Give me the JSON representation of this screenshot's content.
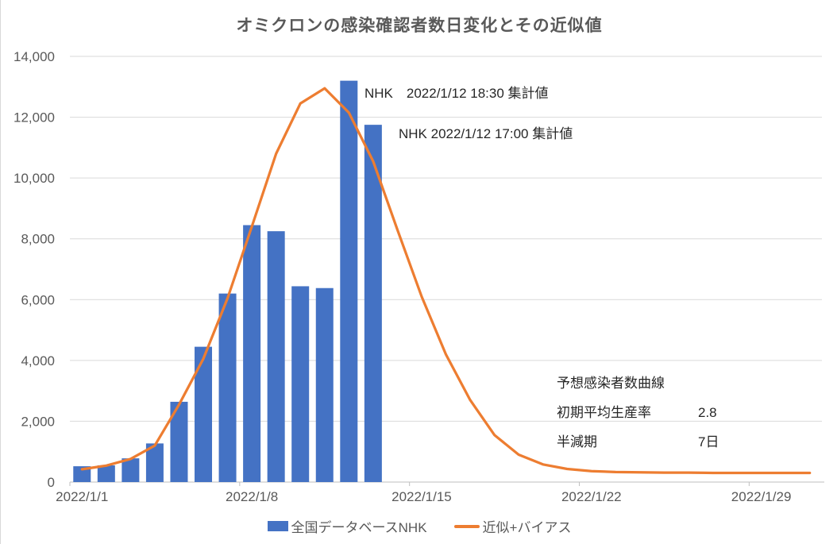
{
  "title": "オミクロンの感染確認者数日変化とその近似値",
  "chart_data": {
    "type": "combo",
    "title": "オミクロンの感染確認者数日変化とその近似値",
    "x_unit": "date (January 2022, daily)",
    "categories": [
      1,
      2,
      3,
      4,
      5,
      6,
      7,
      8,
      9,
      10,
      11,
      12,
      13,
      14,
      15,
      16,
      17,
      18,
      19,
      20,
      21,
      22,
      23,
      24,
      25,
      26,
      27,
      28,
      29,
      30,
      31
    ],
    "x_tick_labels": [
      {
        "day": 1,
        "label": "2022/1/1"
      },
      {
        "day": 8,
        "label": "2022/1/8"
      },
      {
        "day": 15,
        "label": "2022/1/15"
      },
      {
        "day": 22,
        "label": "2022/1/22"
      },
      {
        "day": 29,
        "label": "2022/1/29"
      }
    ],
    "y_ticks": [
      0,
      2000,
      4000,
      6000,
      8000,
      10000,
      12000,
      14000
    ],
    "ylim": [
      0,
      14000
    ],
    "grid": "horizontal",
    "legend_position": "bottom",
    "series": [
      {
        "name": "全国データベースNHK",
        "type": "bar",
        "color": "#4472C4",
        "values": [
          520,
          550,
          780,
          1270,
          2640,
          4450,
          6200,
          8450,
          8250,
          6440,
          6380,
          13200,
          11750,
          null,
          null,
          null,
          null,
          null,
          null,
          null,
          null,
          null,
          null,
          null,
          null,
          null,
          null,
          null,
          null,
          null,
          null
        ]
      },
      {
        "name": "近似+バイアス",
        "type": "line",
        "color": "#ED7D31",
        "values": [
          420,
          540,
          760,
          1200,
          2550,
          4050,
          6050,
          8400,
          10800,
          12450,
          12950,
          12150,
          10550,
          8300,
          6100,
          4200,
          2700,
          1550,
          900,
          580,
          430,
          360,
          330,
          320,
          310,
          310,
          300,
          300,
          300,
          300,
          300
        ]
      }
    ]
  },
  "annotations": [
    {
      "text": "NHK　2022/1/12 18:30 集計値"
    },
    {
      "text": "NHK 2022/1/12 17:00 集計値"
    }
  ],
  "info_panel": {
    "rows": [
      {
        "label": "予想感染者数曲線",
        "value": ""
      },
      {
        "label": "初期平均生産率",
        "value": "2.8"
      },
      {
        "label": "半減期",
        "value": "7日"
      }
    ]
  },
  "legend": {
    "items": [
      {
        "label": "全国データベースNHK",
        "swatch": "bar",
        "color": "#4472C4"
      },
      {
        "label": "近似+バイアス",
        "swatch": "line",
        "color": "#ED7D31"
      }
    ]
  },
  "colors": {
    "bar": "#4472C4",
    "line": "#ED7D31",
    "gridline": "#D9D9D9",
    "axis_line": "#BFBFBF",
    "tick_label": "#595959",
    "title": "#595959",
    "annotation": "#262626"
  }
}
